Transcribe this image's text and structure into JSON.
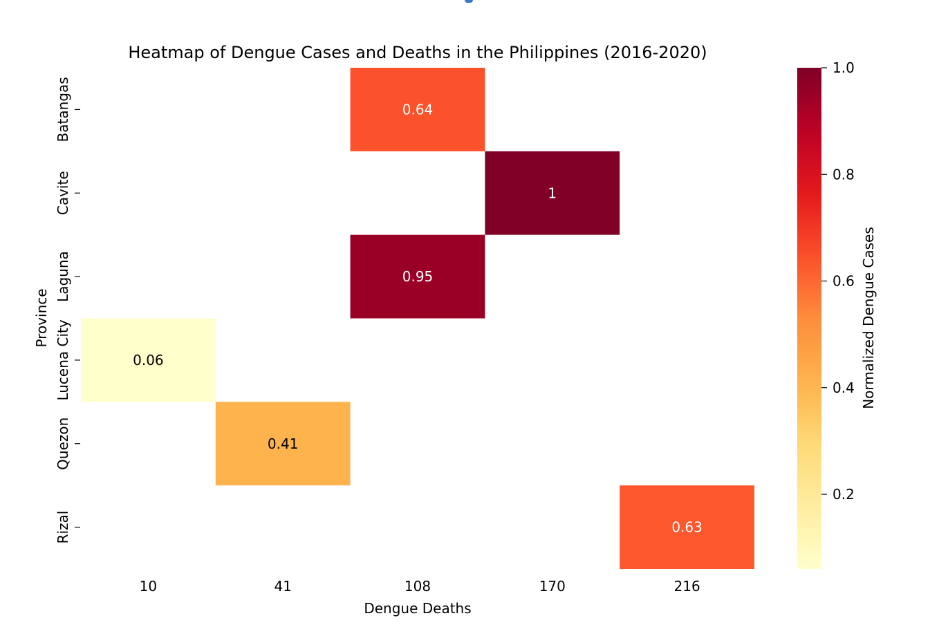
{
  "chart_data": {
    "type": "heatmap",
    "title": "Heatmap of Dengue Cases and Deaths in the Philippines (2016-2020)",
    "xlabel": "Dengue Deaths",
    "ylabel": "Province",
    "x_categories": [
      "10",
      "41",
      "108",
      "170",
      "216"
    ],
    "y_categories": [
      "Batangas",
      "Cavite",
      "Laguna",
      "Lucena City",
      "Quezon",
      "Rizal"
    ],
    "cells": [
      {
        "row": "Batangas",
        "col": "108",
        "value": 0.64,
        "label": "0.64"
      },
      {
        "row": "Cavite",
        "col": "170",
        "value": 1.0,
        "label": "1"
      },
      {
        "row": "Laguna",
        "col": "108",
        "value": 0.95,
        "label": "0.95"
      },
      {
        "row": "Lucena City",
        "col": "10",
        "value": 0.06,
        "label": "0.06"
      },
      {
        "row": "Quezon",
        "col": "41",
        "value": 0.41,
        "label": "0.41"
      },
      {
        "row": "Rizal",
        "col": "216",
        "value": 0.63,
        "label": "0.63"
      }
    ],
    "colorbar": {
      "label": "Normalized Dengue Cases",
      "colormap": "YlOrRd",
      "range": [
        0.06,
        1.0
      ],
      "ticks": [
        1.0,
        0.8,
        0.6,
        0.4,
        0.2
      ],
      "tick_labels": [
        "1.0",
        "0.8",
        "0.6",
        "0.4",
        "0.2"
      ]
    },
    "grid": false
  }
}
